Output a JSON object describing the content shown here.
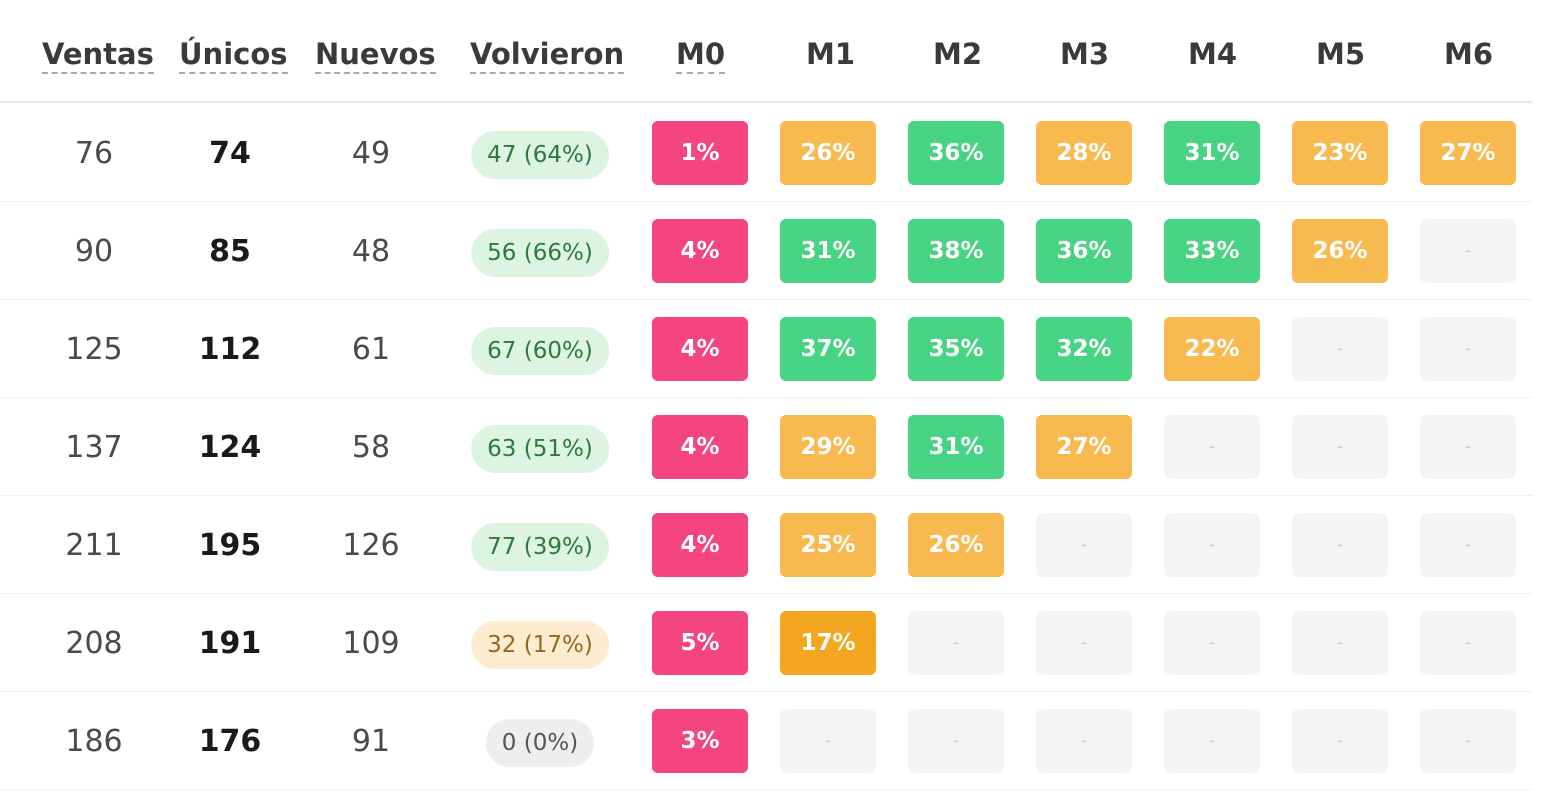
{
  "headers": {
    "ventas": "Ventas",
    "unicos": "Únicos",
    "nuevos": "Nuevos",
    "volvieron": "Volvieron",
    "months": [
      "M0",
      "M1",
      "M2",
      "M3",
      "M4",
      "M5",
      "M6"
    ]
  },
  "colors": {
    "pink": "#f4457f",
    "green": "#46d384",
    "amber": "#f8b94f",
    "orange": "#f4a621",
    "empty": "#f4f4f4",
    "pill_green_bg": "#ddf4e2",
    "pill_orange_bg": "#fdecd0",
    "pill_gray_bg": "#eeeeee"
  },
  "rows": [
    {
      "ventas": "76",
      "unicos": "74",
      "nuevos": "49",
      "volvieron": "47 (64%)",
      "volvieron_tone": "green",
      "cells": [
        {
          "label": "1%",
          "color": "pink"
        },
        {
          "label": "26%",
          "color": "amber"
        },
        {
          "label": "36%",
          "color": "green"
        },
        {
          "label": "28%",
          "color": "amber"
        },
        {
          "label": "31%",
          "color": "green"
        },
        {
          "label": "23%",
          "color": "amber"
        },
        {
          "label": "27%",
          "color": "amber"
        }
      ]
    },
    {
      "ventas": "90",
      "unicos": "85",
      "nuevos": "48",
      "volvieron": "56 (66%)",
      "volvieron_tone": "green",
      "cells": [
        {
          "label": "4%",
          "color": "pink"
        },
        {
          "label": "31%",
          "color": "green"
        },
        {
          "label": "38%",
          "color": "green"
        },
        {
          "label": "36%",
          "color": "green"
        },
        {
          "label": "33%",
          "color": "green"
        },
        {
          "label": "26%",
          "color": "amber"
        },
        {
          "label": "-",
          "color": "empty"
        }
      ]
    },
    {
      "ventas": "125",
      "unicos": "112",
      "nuevos": "61",
      "volvieron": "67 (60%)",
      "volvieron_tone": "green",
      "cells": [
        {
          "label": "4%",
          "color": "pink"
        },
        {
          "label": "37%",
          "color": "green"
        },
        {
          "label": "35%",
          "color": "green"
        },
        {
          "label": "32%",
          "color": "green"
        },
        {
          "label": "22%",
          "color": "amber"
        },
        {
          "label": "-",
          "color": "empty"
        },
        {
          "label": "-",
          "color": "empty"
        }
      ]
    },
    {
      "ventas": "137",
      "unicos": "124",
      "nuevos": "58",
      "volvieron": "63 (51%)",
      "volvieron_tone": "green",
      "cells": [
        {
          "label": "4%",
          "color": "pink"
        },
        {
          "label": "29%",
          "color": "amber"
        },
        {
          "label": "31%",
          "color": "green"
        },
        {
          "label": "27%",
          "color": "amber"
        },
        {
          "label": "-",
          "color": "empty"
        },
        {
          "label": "-",
          "color": "empty"
        },
        {
          "label": "-",
          "color": "empty"
        }
      ]
    },
    {
      "ventas": "211",
      "unicos": "195",
      "nuevos": "126",
      "volvieron": "77 (39%)",
      "volvieron_tone": "green",
      "cells": [
        {
          "label": "4%",
          "color": "pink"
        },
        {
          "label": "25%",
          "color": "amber"
        },
        {
          "label": "26%",
          "color": "amber"
        },
        {
          "label": "-",
          "color": "empty"
        },
        {
          "label": "-",
          "color": "empty"
        },
        {
          "label": "-",
          "color": "empty"
        },
        {
          "label": "-",
          "color": "empty"
        }
      ]
    },
    {
      "ventas": "208",
      "unicos": "191",
      "nuevos": "109",
      "volvieron": "32 (17%)",
      "volvieron_tone": "orange",
      "cells": [
        {
          "label": "5%",
          "color": "pink"
        },
        {
          "label": "17%",
          "color": "orange"
        },
        {
          "label": "-",
          "color": "empty"
        },
        {
          "label": "-",
          "color": "empty"
        },
        {
          "label": "-",
          "color": "empty"
        },
        {
          "label": "-",
          "color": "empty"
        },
        {
          "label": "-",
          "color": "empty"
        }
      ]
    },
    {
      "ventas": "186",
      "unicos": "176",
      "nuevos": "91",
      "volvieron": "0 (0%)",
      "volvieron_tone": "gray",
      "cells": [
        {
          "label": "3%",
          "color": "pink"
        },
        {
          "label": "-",
          "color": "empty"
        },
        {
          "label": "-",
          "color": "empty"
        },
        {
          "label": "-",
          "color": "empty"
        },
        {
          "label": "-",
          "color": "empty"
        },
        {
          "label": "-",
          "color": "empty"
        },
        {
          "label": "-",
          "color": "empty"
        }
      ]
    }
  ]
}
